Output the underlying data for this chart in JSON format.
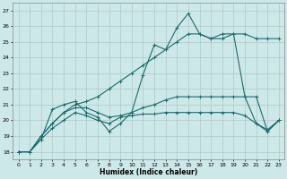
{
  "xlabel": "Humidex (Indice chaleur)",
  "background_color": "#cde8e8",
  "grid_color": "#b0c8c8",
  "line_color": "#1a6b6b",
  "xlim": [
    -0.5,
    23.5
  ],
  "ylim": [
    17.5,
    27.5
  ],
  "xticks": [
    0,
    1,
    2,
    3,
    4,
    5,
    6,
    7,
    8,
    9,
    10,
    11,
    12,
    13,
    14,
    15,
    16,
    17,
    18,
    19,
    20,
    21,
    22,
    23
  ],
  "yticks": [
    18,
    19,
    20,
    21,
    22,
    23,
    24,
    25,
    26,
    27
  ],
  "line1": [
    18.0,
    18.0,
    18.8,
    20.7,
    21.0,
    21.2,
    20.5,
    20.2,
    19.3,
    19.8,
    20.5,
    22.9,
    24.8,
    24.5,
    25.9,
    26.8,
    25.5,
    25.2,
    25.5,
    25.5,
    21.5,
    21.5,
    19.3,
    20.0
  ],
  "line2": [
    18.0,
    18.0,
    18.8,
    19.5,
    20.0,
    20.5,
    20.3,
    20.0,
    19.8,
    20.2,
    20.3,
    20.4,
    20.4,
    20.5,
    20.5,
    20.5,
    20.5,
    20.5,
    20.5,
    20.5,
    20.3,
    19.8,
    19.4,
    20.0
  ],
  "line3": [
    18.0,
    18.0,
    19.0,
    19.8,
    20.5,
    20.8,
    20.8,
    20.5,
    20.2,
    20.3,
    20.5,
    20.8,
    21.0,
    21.3,
    21.5,
    21.5,
    21.5,
    21.5,
    21.5,
    21.5,
    21.5,
    19.8,
    19.3,
    20.0
  ],
  "line4": [
    18.0,
    18.0,
    19.0,
    19.8,
    20.5,
    21.0,
    21.2,
    21.5,
    22.0,
    22.5,
    23.0,
    23.5,
    24.0,
    24.5,
    25.0,
    25.5,
    25.5,
    25.2,
    25.2,
    25.5,
    25.5,
    25.2,
    25.2,
    25.2
  ]
}
